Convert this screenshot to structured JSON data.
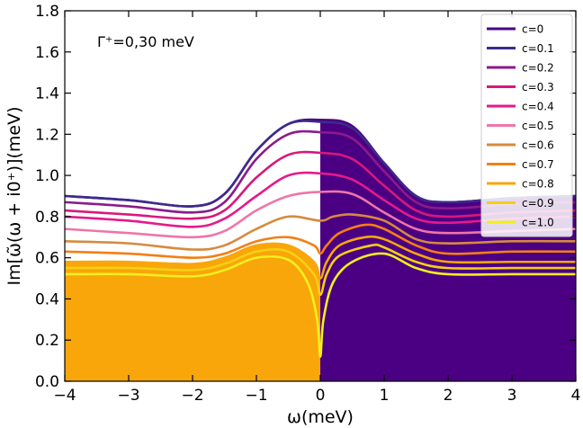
{
  "chart_data": {
    "type": "line",
    "annotation": "Γ⁺=0,30 meV",
    "xlabel": "ω(meV)",
    "ylabel": "Im[ω̃(ω + i0⁺)](meV)",
    "xlim": [
      -4,
      4
    ],
    "ylim": [
      0.0,
      1.8
    ],
    "xticks": [
      -4,
      -3,
      -2,
      -1,
      0,
      1,
      2,
      3,
      4
    ],
    "xtick_labels": [
      "−4",
      "−3",
      "−2",
      "−1",
      "0",
      "1",
      "2",
      "3",
      "4"
    ],
    "yticks": [
      0.0,
      0.2,
      0.4,
      0.6,
      0.8,
      1.0,
      1.2,
      1.4,
      1.6,
      1.8
    ],
    "ytick_labels": [
      "0.0",
      "0.2",
      "0.4",
      "0.6",
      "0.8",
      "1.0",
      "1.2",
      "1.4",
      "1.6",
      "1.8"
    ],
    "legend_position": "top-right",
    "fills": [
      {
        "name": "c=0.8 region",
        "side": "left",
        "color": "#f9a60a"
      },
      {
        "name": "c=0 region",
        "side": "right",
        "color": "#4b0083"
      }
    ],
    "series": [
      {
        "name": "c=0",
        "color": "#4b0083",
        "x": [
          -4,
          -3,
          -2,
          -1.5,
          -1,
          -0.5,
          0,
          0.5,
          1,
          1.5,
          2,
          3,
          4
        ],
        "y": [
          0.9,
          0.88,
          0.85,
          0.91,
          1.12,
          1.25,
          1.27,
          1.24,
          1.06,
          0.9,
          0.87,
          0.89,
          0.9
        ]
      },
      {
        "name": "c=0.1",
        "color": "#3d2a8c",
        "x": [
          -4,
          -3,
          -2,
          -1.5,
          -1,
          -0.5,
          0,
          0.5,
          1,
          1.5,
          2,
          3,
          4
        ],
        "y": [
          0.9,
          0.88,
          0.85,
          0.91,
          1.12,
          1.25,
          1.26,
          1.23,
          1.06,
          0.9,
          0.87,
          0.89,
          0.9
        ]
      },
      {
        "name": "c=0.2",
        "color": "#8c1a8c",
        "x": [
          -4,
          -3,
          -2,
          -1.5,
          -1,
          -0.5,
          0,
          0.5,
          1,
          1.5,
          2,
          3,
          4
        ],
        "y": [
          0.87,
          0.85,
          0.82,
          0.87,
          1.08,
          1.2,
          1.21,
          1.18,
          1.02,
          0.87,
          0.84,
          0.86,
          0.87
        ]
      },
      {
        "name": "c=0.3",
        "color": "#d6197c",
        "x": [
          -4,
          -3,
          -2,
          -1.5,
          -1,
          -0.5,
          0,
          0.5,
          1,
          1.5,
          2,
          3,
          4
        ],
        "y": [
          0.83,
          0.81,
          0.79,
          0.83,
          0.99,
          1.1,
          1.11,
          1.08,
          0.95,
          0.83,
          0.8,
          0.82,
          0.83
        ]
      },
      {
        "name": "c=0.4",
        "color": "#e41a8c",
        "x": [
          -4,
          -3,
          -2,
          -1.5,
          -1,
          -0.5,
          0,
          0.5,
          1,
          1.5,
          2,
          3,
          4
        ],
        "y": [
          0.8,
          0.78,
          0.75,
          0.79,
          0.9,
          1.0,
          1.01,
          0.98,
          0.88,
          0.79,
          0.77,
          0.79,
          0.8
        ]
      },
      {
        "name": "c=0.5",
        "color": "#ef75a8",
        "x": [
          -4,
          -3,
          -2,
          -1.5,
          -1,
          -0.5,
          0,
          0.5,
          1,
          1.5,
          2,
          3,
          4
        ],
        "y": [
          0.74,
          0.72,
          0.7,
          0.73,
          0.83,
          0.9,
          0.92,
          0.91,
          0.82,
          0.74,
          0.72,
          0.73,
          0.74
        ]
      },
      {
        "name": "c=0.6",
        "color": "#d68a3e",
        "x": [
          -4,
          -3,
          -2,
          -1.5,
          -1,
          -0.5,
          0,
          0.2,
          0.5,
          1,
          1.5,
          2,
          3,
          4
        ],
        "y": [
          0.68,
          0.67,
          0.64,
          0.66,
          0.74,
          0.8,
          0.78,
          0.8,
          0.81,
          0.78,
          0.69,
          0.67,
          0.68,
          0.68
        ]
      },
      {
        "name": "c=0.7",
        "color": "#f57e14",
        "x": [
          -4,
          -3,
          -2,
          -1.5,
          -1,
          -0.5,
          -0.1,
          0,
          0.1,
          0.3,
          0.7,
          1,
          1.5,
          2,
          3,
          4
        ],
        "y": [
          0.63,
          0.62,
          0.6,
          0.62,
          0.68,
          0.7,
          0.66,
          0.62,
          0.66,
          0.72,
          0.76,
          0.74,
          0.66,
          0.62,
          0.63,
          0.63
        ]
      },
      {
        "name": "c=0.8",
        "color": "#f9a60a",
        "x": [
          -4,
          -3,
          -2,
          -1.5,
          -1,
          -0.5,
          -0.1,
          0,
          0.1,
          0.3,
          0.7,
          1,
          1.5,
          2,
          3,
          4
        ],
        "y": [
          0.58,
          0.58,
          0.57,
          0.6,
          0.66,
          0.66,
          0.58,
          0.5,
          0.58,
          0.66,
          0.7,
          0.69,
          0.62,
          0.58,
          0.58,
          0.58
        ]
      },
      {
        "name": "c=0.9",
        "color": "#f5cf14",
        "x": [
          -4,
          -3,
          -2,
          -1.5,
          -1,
          -0.5,
          -0.1,
          0,
          0.1,
          0.3,
          0.8,
          1,
          1.5,
          2,
          3,
          4
        ],
        "y": [
          0.55,
          0.55,
          0.54,
          0.57,
          0.63,
          0.63,
          0.52,
          0.42,
          0.52,
          0.61,
          0.66,
          0.65,
          0.58,
          0.55,
          0.55,
          0.55
        ]
      },
      {
        "name": "c=1.0",
        "color": "#f0f01e",
        "x": [
          -4,
          -3,
          -2,
          -1.5,
          -1,
          -0.5,
          -0.2,
          -0.05,
          0,
          0.05,
          0.2,
          0.5,
          1,
          1.5,
          2,
          3,
          4
        ],
        "y": [
          0.52,
          0.52,
          0.51,
          0.54,
          0.6,
          0.59,
          0.48,
          0.3,
          0.12,
          0.3,
          0.48,
          0.58,
          0.62,
          0.55,
          0.52,
          0.52,
          0.52
        ]
      }
    ]
  }
}
